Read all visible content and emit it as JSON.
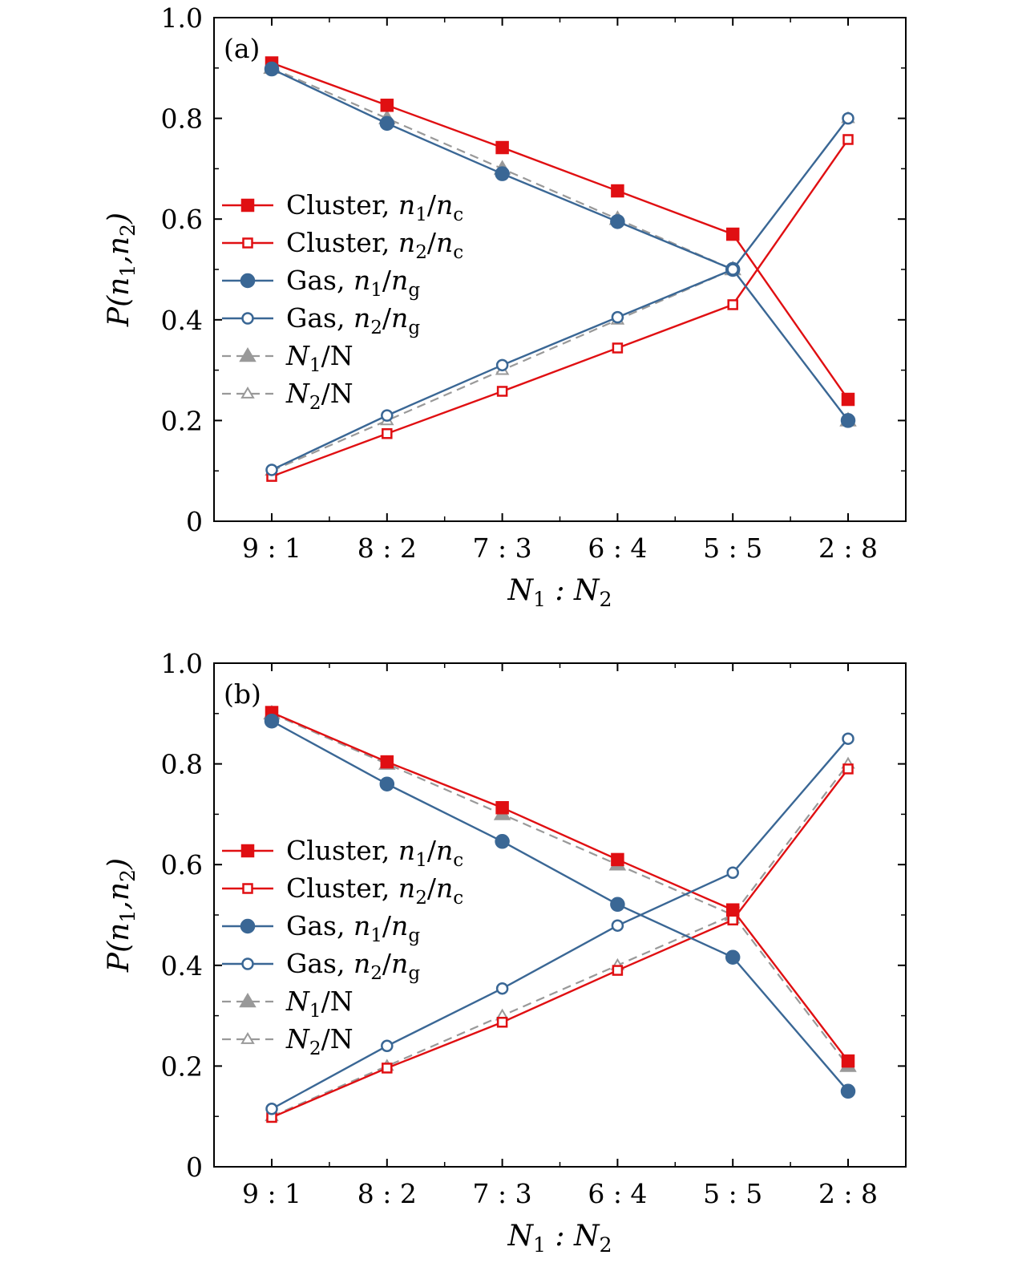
{
  "colors": {
    "red": "#e00f12",
    "blue": "#3a6795",
    "gray": "#999999",
    "background": "#ffffff",
    "axis": "#000000"
  },
  "legend_labels": [
    "Cluster, n1/nc",
    "Cluster, n2/nc",
    "Gas, n1/ng",
    "Gas, n2/ng",
    "N1/N",
    "N2/N"
  ],
  "chart_data": [
    {
      "type": "line",
      "panel_label": "(a)",
      "xlabel": "N1 : N2",
      "ylabel": "P(n1,n2)",
      "categories": [
        "9 : 1",
        "8 : 2",
        "7 : 3",
        "6 : 4",
        "5 : 5",
        "2 : 8"
      ],
      "ylim": [
        0,
        1.0
      ],
      "yticks": [
        0,
        0.2,
        0.4,
        0.6,
        0.8,
        1.0
      ],
      "ytick_labels": [
        "0",
        "0.2",
        "0.4",
        "0.6",
        "0.8",
        "1.0"
      ],
      "legend_position": "center-left",
      "grid": false,
      "series": [
        {
          "name": "Cluster, n1/nc",
          "color": "red",
          "marker": "square-filled",
          "dashed": false,
          "values": [
            0.91,
            0.826,
            0.742,
            0.656,
            0.57,
            0.242
          ]
        },
        {
          "name": "Cluster, n2/nc",
          "color": "red",
          "marker": "square-open",
          "dashed": false,
          "values": [
            0.089,
            0.174,
            0.258,
            0.344,
            0.43,
            0.758
          ]
        },
        {
          "name": "Gas, n1/ng",
          "color": "blue",
          "marker": "circle-filled",
          "dashed": false,
          "values": [
            0.898,
            0.79,
            0.69,
            0.595,
            0.5,
            0.2
          ]
        },
        {
          "name": "Gas, n2/ng",
          "color": "blue",
          "marker": "circle-open",
          "dashed": false,
          "values": [
            0.102,
            0.21,
            0.31,
            0.405,
            0.5,
            0.8
          ]
        },
        {
          "name": "N1/N",
          "color": "gray",
          "marker": "triangle-filled",
          "dashed": true,
          "values": [
            0.9,
            0.8,
            0.7,
            0.6,
            0.5,
            0.2
          ]
        },
        {
          "name": "N2/N",
          "color": "gray",
          "marker": "triangle-open",
          "dashed": true,
          "values": [
            0.1,
            0.2,
            0.3,
            0.4,
            0.5,
            0.8
          ]
        }
      ]
    },
    {
      "type": "line",
      "panel_label": "(b)",
      "xlabel": "N1 : N2",
      "ylabel": "P(n1,n2)",
      "categories": [
        "9 : 1",
        "8 : 2",
        "7 : 3",
        "6 : 4",
        "5 : 5",
        "2 : 8"
      ],
      "ylim": [
        0,
        1.0
      ],
      "yticks": [
        0,
        0.2,
        0.4,
        0.6,
        0.8,
        1.0
      ],
      "ytick_labels": [
        "0",
        "0.2",
        "0.4",
        "0.6",
        "0.8",
        "1.0"
      ],
      "legend_position": "center-left",
      "grid": false,
      "series": [
        {
          "name": "Cluster, n1/nc",
          "color": "red",
          "marker": "square-filled",
          "dashed": false,
          "values": [
            0.902,
            0.804,
            0.713,
            0.61,
            0.51,
            0.21
          ]
        },
        {
          "name": "Cluster, n2/nc",
          "color": "red",
          "marker": "square-open",
          "dashed": false,
          "values": [
            0.098,
            0.196,
            0.287,
            0.39,
            0.49,
            0.79
          ]
        },
        {
          "name": "Gas, n1/ng",
          "color": "blue",
          "marker": "circle-filled",
          "dashed": false,
          "values": [
            0.885,
            0.76,
            0.646,
            0.521,
            0.416,
            0.15
          ]
        },
        {
          "name": "Gas, n2/ng",
          "color": "blue",
          "marker": "circle-open",
          "dashed": false,
          "values": [
            0.115,
            0.24,
            0.354,
            0.479,
            0.584,
            0.85
          ]
        },
        {
          "name": "N1/N",
          "color": "gray",
          "marker": "triangle-filled",
          "dashed": true,
          "values": [
            0.9,
            0.8,
            0.7,
            0.6,
            0.5,
            0.2
          ]
        },
        {
          "name": "N2/N",
          "color": "gray",
          "marker": "triangle-open",
          "dashed": true,
          "values": [
            0.1,
            0.2,
            0.3,
            0.4,
            0.5,
            0.8
          ]
        }
      ]
    }
  ]
}
